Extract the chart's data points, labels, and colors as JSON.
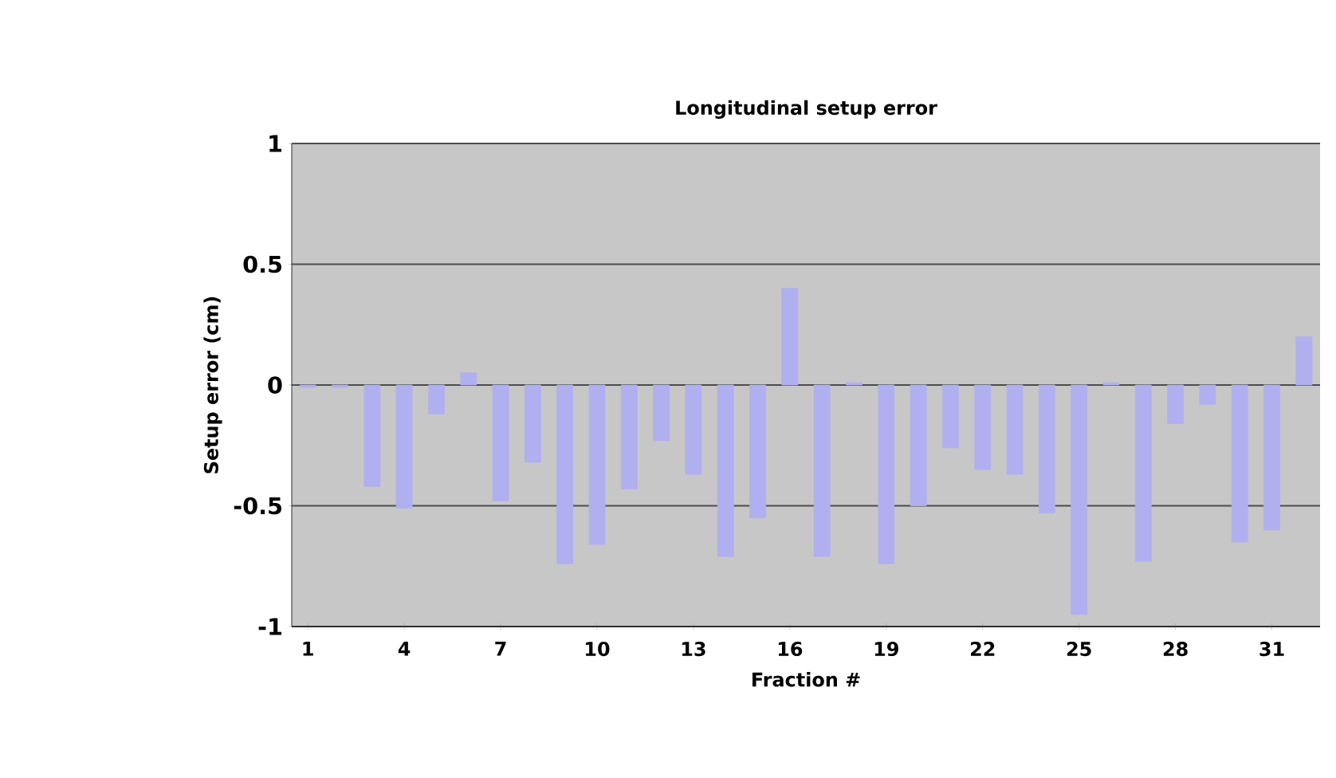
{
  "chart_data": {
    "type": "bar",
    "title": "Longitudinal setup error",
    "xlabel": "Fraction #",
    "ylabel": "Setup error (cm)",
    "categories": [
      "1",
      null,
      null,
      "4",
      null,
      null,
      "7",
      null,
      null,
      "10",
      null,
      null,
      "13",
      null,
      null,
      "16",
      null,
      null,
      "19",
      null,
      null,
      "22",
      null,
      null,
      "25",
      null,
      null,
      "28",
      null,
      null,
      "31",
      null
    ],
    "values": [
      -0.01,
      -0.01,
      -0.42,
      -0.51,
      -0.12,
      0.05,
      -0.48,
      -0.32,
      -0.74,
      -0.66,
      -0.43,
      -0.23,
      -0.37,
      -0.71,
      -0.55,
      0.4,
      -0.71,
      0.01,
      -0.74,
      -0.5,
      -0.26,
      -0.35,
      -0.37,
      -0.53,
      -0.95,
      0.01,
      -0.73,
      -0.16,
      -0.08,
      -0.65,
      -0.6,
      0.2
    ],
    "color": "#b0b0f0",
    "ylim": [
      -1,
      1
    ],
    "yticks": [
      -1,
      -0.5,
      0,
      0.5,
      1
    ],
    "grid": "y"
  }
}
